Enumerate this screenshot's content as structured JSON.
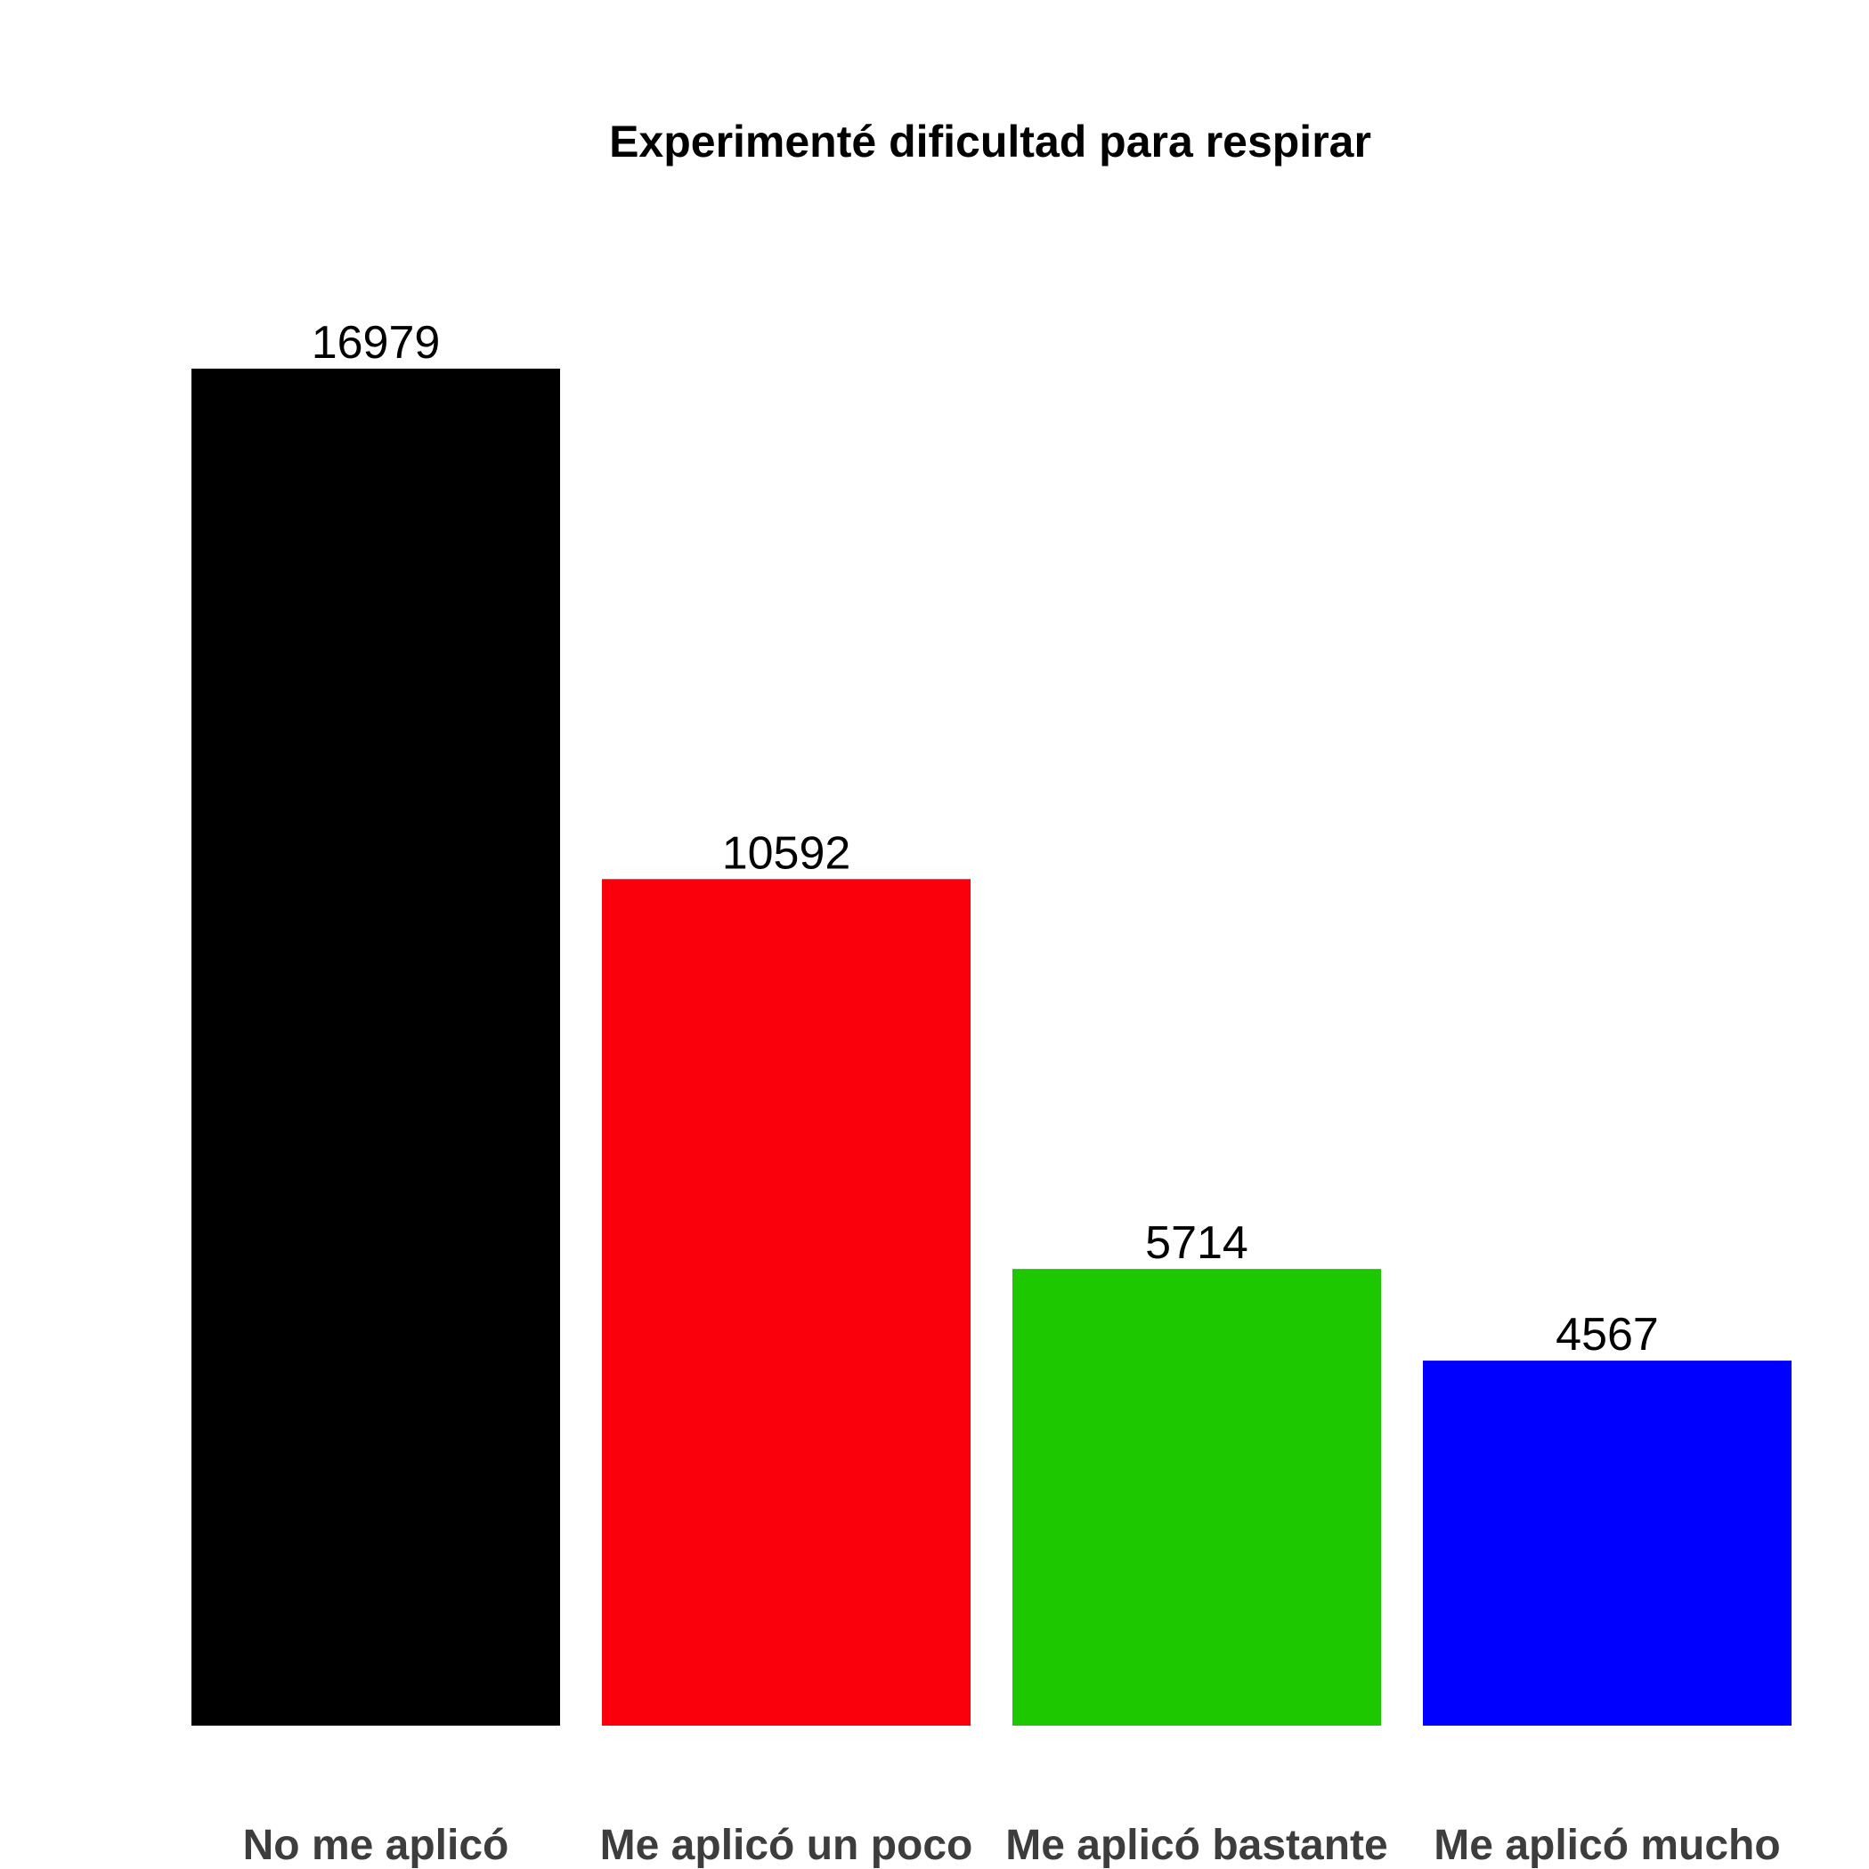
{
  "chart_data": {
    "type": "bar",
    "title": "Experimenté dificultad para respirar",
    "xlabel": "",
    "ylabel": "",
    "categories": [
      "No me aplicó",
      "Me aplicó un poco",
      "Me aplicó bastante",
      "Me aplicó mucho"
    ],
    "values": [
      16979,
      10592,
      5714,
      4567
    ],
    "value_labels": [
      "16979",
      "10592",
      "5714",
      "4567"
    ],
    "colors": [
      "#000000",
      "#f9000c",
      "#1ec800",
      "#0000ff"
    ],
    "ylim": [
      0,
      16979
    ],
    "grid": false,
    "legend": "none",
    "axes_visible": false
  }
}
